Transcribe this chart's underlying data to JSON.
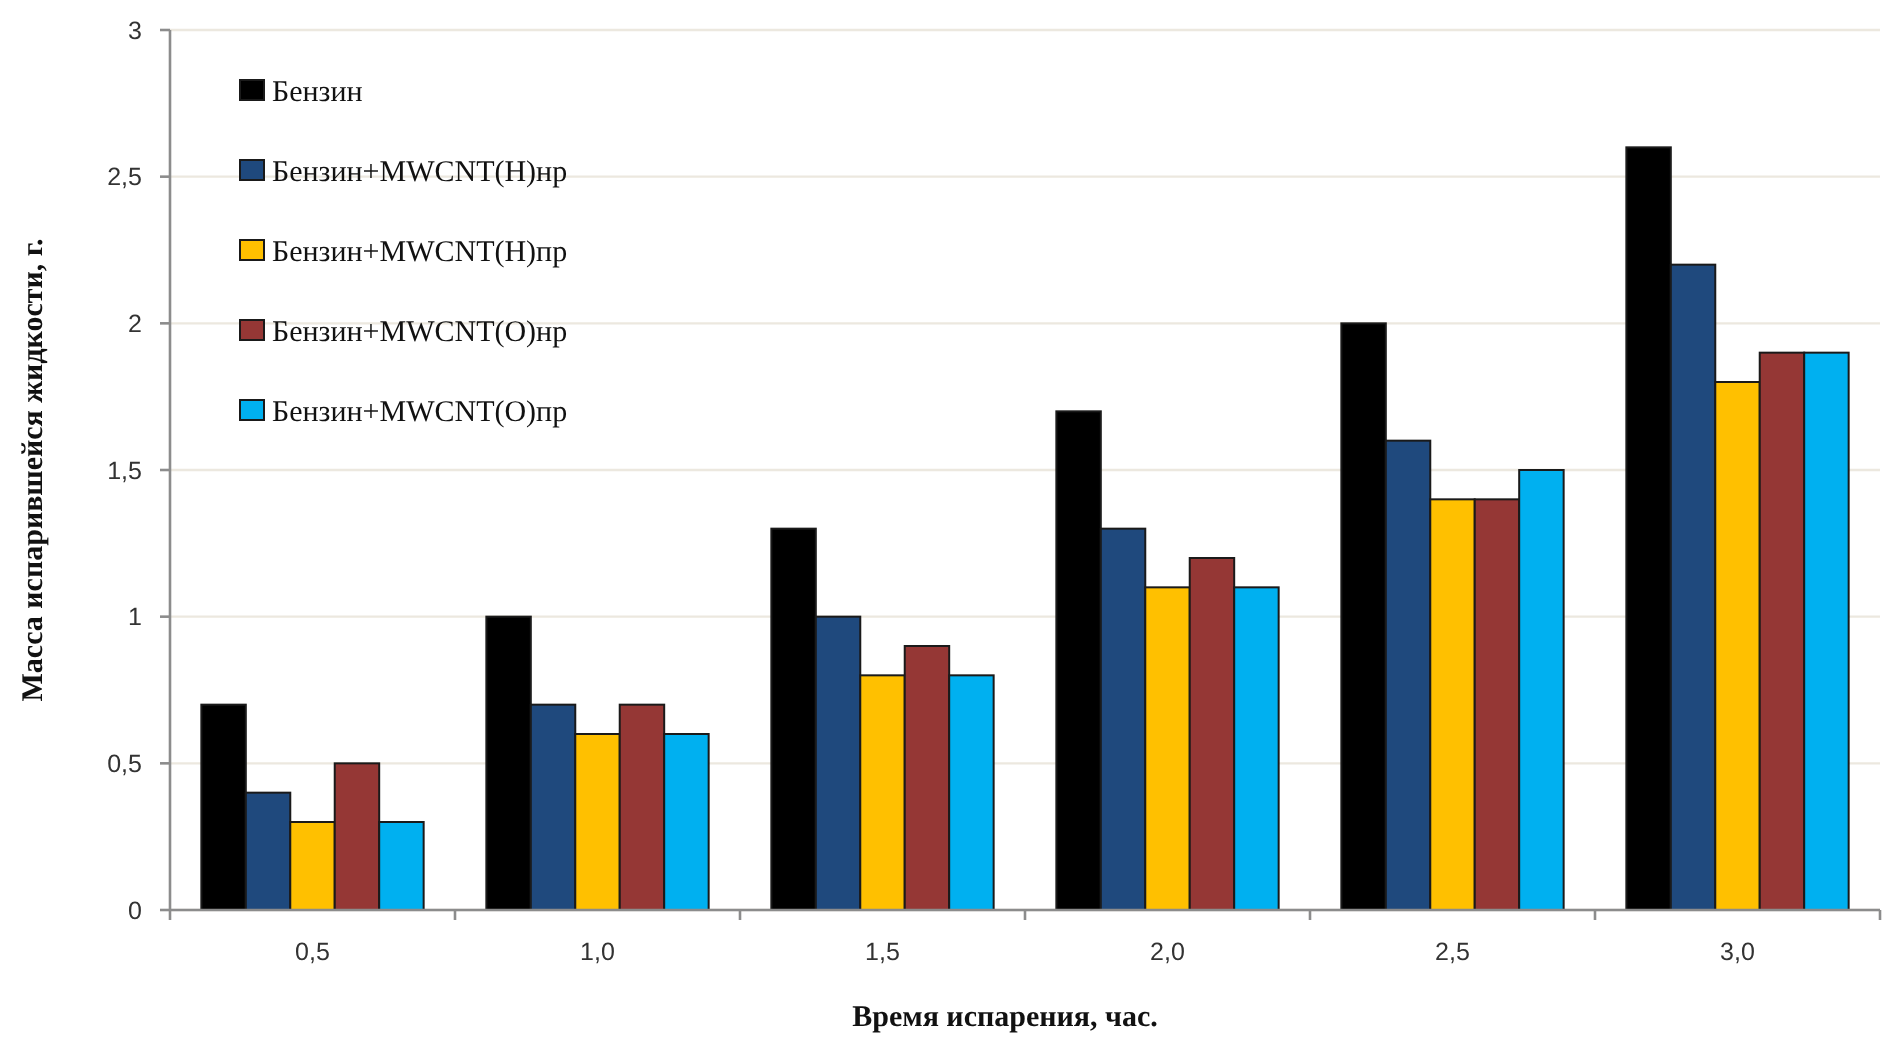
{
  "chart_data": {
    "type": "bar",
    "xlabel": "Время испарения, час.",
    "ylabel": "Масса испарившейся жидкости, г.",
    "categories": [
      "0,5",
      "1,0",
      "1,5",
      "2,0",
      "2,5",
      "3,0"
    ],
    "series": [
      {
        "name": "Бензин",
        "color": "#000000",
        "values": [
          0.7,
          1.0,
          1.3,
          1.7,
          2.0,
          2.6
        ]
      },
      {
        "name": "Бензин+MWCNT(Н)нр",
        "color": "#1f497d",
        "values": [
          0.4,
          0.7,
          1.0,
          1.3,
          1.6,
          2.2
        ]
      },
      {
        "name": "Бензин+MWCNT(Н)пр",
        "color": "#ffc000",
        "values": [
          0.3,
          0.6,
          0.8,
          1.1,
          1.4,
          1.8
        ]
      },
      {
        "name": "Бензин+MWCNT(О)нр",
        "color": "#953735",
        "values": [
          0.5,
          0.7,
          0.9,
          1.2,
          1.4,
          1.9
        ]
      },
      {
        "name": "Бензин+MWCNT(О)пр",
        "color": "#00b0f0",
        "values": [
          0.3,
          0.6,
          0.8,
          1.1,
          1.5,
          1.9
        ]
      }
    ],
    "ylim": [
      0,
      3
    ],
    "yticks": [
      0,
      {
        "value": 0.5,
        "label": "0,5"
      },
      1,
      {
        "value": 1.5,
        "label": "1,5"
      },
      2,
      {
        "value": 2.5,
        "label": "2,5"
      },
      3
    ],
    "grid": "y",
    "legend": "top left"
  }
}
